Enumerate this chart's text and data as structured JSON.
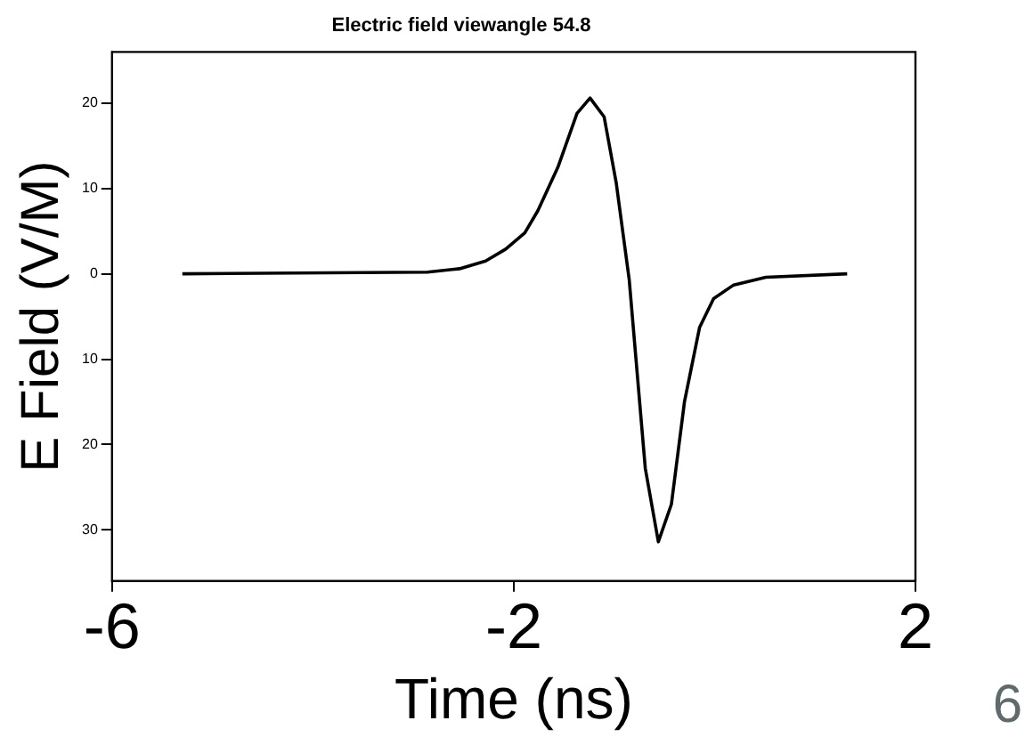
{
  "chart_data": {
    "type": "line",
    "title": "Electric field viewangle 54.8",
    "xlabel": "Time (ns)",
    "ylabel": "E Field (V/M)",
    "annotations": [
      "6"
    ],
    "x": [
      -5.3,
      -2.86,
      -2.54,
      -2.28,
      -2.08,
      -1.89,
      -1.76,
      -1.56,
      -1.37,
      -1.24,
      -1.1,
      -0.98,
      -0.85,
      -0.69,
      -0.56,
      -0.43,
      -0.3,
      -0.15,
      -0.01,
      0.19,
      0.51,
      1.32
    ],
    "series": [
      {
        "color": "#000000",
        "values": [
          0,
          0.2,
          0.6,
          1.5,
          2.9,
          4.8,
          7.4,
          12.5,
          18.8,
          20.6,
          18.4,
          10.7,
          -0.7,
          -22.8,
          -31.4,
          -27,
          -15,
          -6.3,
          -2.9,
          -1.3,
          -0.4,
          0
        ]
      }
    ],
    "xlim": [
      -6,
      2
    ],
    "xticks": [
      -6,
      -2,
      2
    ],
    "ylim": [
      -36,
      26
    ],
    "yticks": [
      {
        "value": -30,
        "label": "30"
      },
      {
        "value": -20,
        "label": "20"
      },
      {
        "value": -10,
        "label": "10"
      },
      0,
      10,
      20
    ],
    "grid": false,
    "legend": false,
    "marker": "none",
    "line_style": "solid"
  }
}
